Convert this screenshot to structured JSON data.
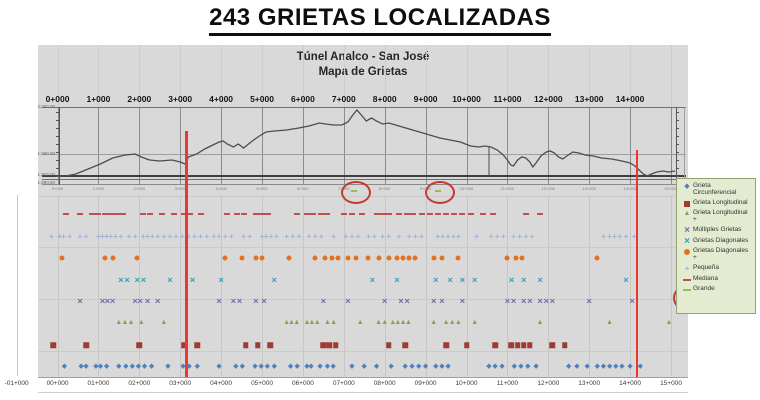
{
  "page_title": "243 GRIETAS LOCALIZADAS",
  "chart": {
    "title_line1": "Túnel Analco - San José",
    "title_line2": "Mapa de Grietas",
    "top_axis_labels": [
      "0+000",
      "1+000",
      "2+000",
      "3+000",
      "4+000",
      "5+000",
      "6+000",
      "7+000",
      "8+000",
      "9+000",
      "10+000",
      "11+000",
      "12+000",
      "13+000",
      "14+000"
    ],
    "bottom_axis_labels": [
      "-01+000",
      "00+000",
      "01+000",
      "02+000",
      "03+000",
      "04+000",
      "05+000",
      "06+000",
      "07+000",
      "08+000",
      "09+000",
      "10+000",
      "11+000",
      "12+000",
      "13+000",
      "14+000",
      "15+000"
    ],
    "profile_mini_labels": [
      "0+000",
      "1+000",
      "2+000",
      "3+000",
      "4+000",
      "5+000",
      "6+000",
      "7+000",
      "8+000",
      "9+000",
      "10+000",
      "11+000",
      "12+000",
      "13+000",
      "14+000",
      "15+000"
    ],
    "elevation_axis_labels": [
      "2,000.00",
      "1,950.00",
      "1,902.00",
      "1,890.00"
    ]
  },
  "legend": {
    "items": [
      {
        "key": "grieta-circunferencial",
        "marker": "diamond",
        "color": "#4f81bd",
        "label": "Grieta Circunferencial"
      },
      {
        "key": "grieta-longitudinal",
        "marker": "square",
        "color": "#9e3b33",
        "label": "Grieta Longitudinal"
      },
      {
        "key": "grieta-longitudinal-plus",
        "marker": "triangle",
        "color": "#89a04c",
        "label": "Grieta Longitudinal +"
      },
      {
        "key": "multiples-grietas",
        "marker": "x",
        "color": "#7a6aa8",
        "label": "Múltiples Grietas"
      },
      {
        "key": "grietas-diagonales",
        "marker": "x",
        "color": "#31a0b5",
        "label": "Grietas Diagonales"
      },
      {
        "key": "grietas-diagonales-plus",
        "marker": "circle",
        "color": "#e4711f",
        "label": "Grietas Diagonales +"
      },
      {
        "key": "pequena",
        "marker": "plus",
        "color": "#9fb1d4",
        "label": "Pequeña"
      },
      {
        "key": "mediana",
        "marker": "dash",
        "color": "#c0504d",
        "label": "Mediana"
      },
      {
        "key": "grande",
        "marker": "dash",
        "color": "#9bbb59",
        "label": "Grande"
      }
    ]
  },
  "chart_data": {
    "type": "scatter",
    "title": "Túnel Analco - San José — Mapa de Grietas",
    "x_axis": {
      "label": "estación",
      "min": -1,
      "max": 15.2,
      "tick_step": 1,
      "tick_format": "KK+000"
    },
    "profile": [
      [
        0,
        176
      ],
      [
        0.2,
        176
      ],
      [
        0.45,
        174
      ],
      [
        0.75,
        169
      ],
      [
        1.05,
        164
      ],
      [
        1.35,
        158
      ],
      [
        1.65,
        155
      ],
      [
        1.9,
        154
      ],
      [
        2.05,
        157
      ],
      [
        2.25,
        160
      ],
      [
        2.5,
        161
      ],
      [
        2.8,
        160
      ],
      [
        3.0,
        162
      ],
      [
        3.12,
        164
      ],
      [
        3.2,
        157
      ],
      [
        3.4,
        154
      ],
      [
        3.6,
        149
      ],
      [
        3.8,
        145
      ],
      [
        3.95,
        142
      ],
      [
        4.05,
        141
      ],
      [
        4.15,
        144
      ],
      [
        4.3,
        147
      ],
      [
        4.42,
        144
      ],
      [
        4.55,
        148
      ],
      [
        4.7,
        143
      ],
      [
        4.9,
        137
      ],
      [
        5.1,
        132
      ],
      [
        5.3,
        131
      ],
      [
        5.6,
        130
      ],
      [
        5.9,
        128
      ],
      [
        6.15,
        126
      ],
      [
        6.4,
        123
      ],
      [
        6.55,
        124
      ],
      [
        6.75,
        125
      ],
      [
        6.95,
        125
      ],
      [
        7.1,
        122
      ],
      [
        7.22,
        115
      ],
      [
        7.32,
        110
      ],
      [
        7.45,
        116
      ],
      [
        7.55,
        121
      ],
      [
        7.68,
        118
      ],
      [
        7.8,
        121
      ],
      [
        7.95,
        124
      ],
      [
        8.1,
        123
      ],
      [
        8.35,
        126
      ],
      [
        8.6,
        129
      ],
      [
        8.85,
        132
      ],
      [
        9.1,
        135
      ],
      [
        9.35,
        138
      ],
      [
        9.6,
        140
      ],
      [
        9.85,
        142
      ],
      [
        10.1,
        146
      ],
      [
        10.3,
        147
      ],
      [
        10.45,
        146
      ],
      [
        10.6,
        147
      ],
      [
        10.75,
        150
      ],
      [
        10.9,
        155
      ],
      [
        11.0,
        160
      ],
      [
        11.08,
        165
      ],
      [
        11.15,
        166
      ],
      [
        11.25,
        160
      ],
      [
        11.35,
        157
      ],
      [
        11.45,
        158
      ],
      [
        11.55,
        162
      ],
      [
        11.62,
        167
      ],
      [
        11.7,
        163
      ],
      [
        11.82,
        156
      ],
      [
        11.95,
        152
      ],
      [
        12.05,
        151
      ],
      [
        12.15,
        153
      ],
      [
        12.25,
        157
      ],
      [
        12.35,
        159
      ],
      [
        12.45,
        156
      ],
      [
        12.6,
        152
      ],
      [
        12.75,
        153
      ],
      [
        12.9,
        155
      ],
      [
        13.1,
        156
      ],
      [
        13.3,
        158
      ],
      [
        13.55,
        159
      ],
      [
        13.8,
        161
      ],
      [
        14.0,
        163
      ],
      [
        14.12,
        166
      ],
      [
        14.22,
        170
      ],
      [
        14.32,
        174
      ],
      [
        14.42,
        176
      ],
      [
        14.52,
        174
      ],
      [
        14.65,
        172
      ],
      [
        14.8,
        171
      ],
      [
        14.95,
        172
      ],
      [
        15.1,
        171
      ]
    ],
    "profile_droplines": [
      [
        10.55,
        147,
        175
      ]
    ],
    "series": [
      {
        "key": "grande",
        "label": "Grande",
        "marker": "dash",
        "color": "#9bbb59",
        "row": "grande",
        "stations": [
          7.25,
          9.3
        ]
      },
      {
        "key": "mediana",
        "label": "Mediana",
        "marker": "dash",
        "color": "#c0504d",
        "row": "mediana",
        "stations": [
          0.2,
          0.55,
          0.85,
          1.0,
          1.15,
          1.3,
          1.45,
          1.6,
          2.1,
          2.25,
          2.55,
          2.85,
          3.1,
          3.25,
          3.5,
          4.15,
          4.4,
          4.55,
          4.85,
          5.0,
          5.15,
          5.85,
          6.1,
          6.25,
          6.45,
          6.6,
          7.0,
          7.2,
          7.45,
          7.8,
          7.95,
          8.1,
          8.35,
          8.55,
          8.7,
          8.9,
          9.1,
          9.3,
          9.5,
          9.7,
          9.9,
          10.1,
          10.4,
          10.65,
          11.45,
          11.8
        ]
      },
      {
        "key": "pequena",
        "label": "Pequeña",
        "marker": "plus",
        "color": "#9fb1d4",
        "row": "pequena",
        "stations": [
          -0.15,
          0.05,
          0.15,
          0.3,
          0.55,
          0.7,
          1.0,
          1.1,
          1.2,
          1.3,
          1.42,
          1.55,
          1.75,
          1.9,
          2.1,
          2.2,
          2.32,
          2.45,
          2.6,
          2.75,
          2.9,
          3.05,
          3.2,
          3.35,
          3.5,
          3.65,
          3.82,
          3.95,
          4.1,
          4.25,
          4.55,
          4.7,
          5.0,
          5.1,
          5.22,
          5.35,
          5.6,
          5.75,
          5.9,
          6.15,
          6.3,
          6.45,
          6.75,
          7.05,
          7.2,
          7.35,
          7.6,
          7.75,
          7.95,
          8.1,
          8.35,
          8.6,
          8.75,
          8.9,
          9.3,
          9.42,
          9.55,
          9.68,
          9.8,
          10.25,
          10.6,
          10.75,
          10.9,
          11.15,
          11.3,
          11.45,
          11.6,
          13.35,
          13.5,
          13.62,
          13.75,
          13.9,
          14.1
        ]
      },
      {
        "key": "grietas-diagonales-plus",
        "label": "Grietas Diagonales +",
        "marker": "circle",
        "color": "#e4711f",
        "row": "diag-plus",
        "stations": [
          0.1,
          1.15,
          1.35,
          1.95,
          4.1,
          4.5,
          4.85,
          5.0,
          5.65,
          6.3,
          6.55,
          6.72,
          6.85,
          7.1,
          7.3,
          7.6,
          7.85,
          8.1,
          8.3,
          8.45,
          8.6,
          8.75,
          9.2,
          9.4,
          9.8,
          11.0,
          11.2,
          11.35,
          13.2
        ]
      },
      {
        "key": "grietas-diagonales",
        "label": "Grietas Diagonales",
        "marker": "x",
        "color": "#31a0b5",
        "row": "diag",
        "stations": [
          1.55,
          1.7,
          1.95,
          2.1,
          2.75,
          3.3,
          4.0,
          5.3,
          7.7,
          8.3,
          9.25,
          9.6,
          9.9,
          10.2,
          11.1,
          11.4,
          11.8,
          13.9
        ]
      },
      {
        "key": "multiples-grietas",
        "label": "Múltiples Grietas",
        "marker": "x",
        "color": "#7a6aa8",
        "row": "multiples",
        "stations": [
          0.55,
          1.1,
          1.22,
          1.35,
          1.9,
          2.02,
          2.2,
          2.45,
          3.95,
          4.3,
          4.45,
          4.85,
          5.05,
          6.5,
          7.1,
          8.0,
          8.4,
          8.55,
          9.2,
          9.4,
          9.9,
          11.0,
          11.15,
          11.4,
          11.55,
          11.8,
          11.95,
          12.1,
          13.0,
          14.05
        ]
      },
      {
        "key": "grieta-longitudinal-plus",
        "label": "Grieta Longitudinal +",
        "marker": "triangle",
        "color": "#89a04c",
        "row": "long-plus",
        "stations": [
          1.5,
          1.65,
          1.8,
          2.05,
          2.6,
          5.6,
          5.72,
          5.85,
          6.1,
          6.22,
          6.35,
          6.6,
          6.75,
          7.4,
          7.85,
          8.0,
          8.2,
          8.32,
          8.45,
          8.58,
          9.2,
          9.5,
          9.65,
          9.8,
          10.2,
          11.8,
          13.5,
          14.95
        ]
      },
      {
        "key": "grieta-longitudinal",
        "label": "Grieta Longitudinal",
        "marker": "square",
        "color": "#9e3b33",
        "row": "long",
        "stations": [
          -0.1,
          0.7,
          2.0,
          3.1,
          3.42,
          4.6,
          4.9,
          5.2,
          6.5,
          6.65,
          6.8,
          8.1,
          8.5,
          9.5,
          10.0,
          10.7,
          11.1,
          11.25,
          11.4,
          11.55,
          12.1,
          12.4
        ]
      },
      {
        "key": "grieta-circunferencial",
        "label": "Grieta Circunferencial",
        "marker": "diamond",
        "color": "#4f81bd",
        "row": "circunf",
        "stations": [
          0.17,
          0.58,
          0.7,
          0.94,
          1.05,
          1.2,
          1.5,
          1.67,
          1.83,
          1.98,
          2.13,
          2.3,
          2.7,
          3.07,
          3.22,
          3.42,
          3.95,
          4.36,
          4.52,
          4.83,
          4.98,
          5.13,
          5.3,
          5.7,
          5.86,
          6.1,
          6.2,
          6.42,
          6.6,
          6.74,
          7.2,
          7.5,
          7.8,
          8.16,
          8.5,
          8.67,
          8.83,
          9.0,
          9.25,
          9.4,
          9.55,
          10.55,
          10.7,
          10.87,
          11.17,
          11.33,
          11.5,
          11.7,
          12.5,
          12.7,
          12.95,
          13.2,
          13.35,
          13.5,
          13.65,
          13.8,
          14.0,
          14.25
        ]
      }
    ],
    "annotations": {
      "red_vertical_lines_stations": [
        3.15,
        14.17
      ],
      "red_circles_stations": [
        7.25,
        9.3
      ],
      "legend_circled_item": "Grande"
    }
  }
}
